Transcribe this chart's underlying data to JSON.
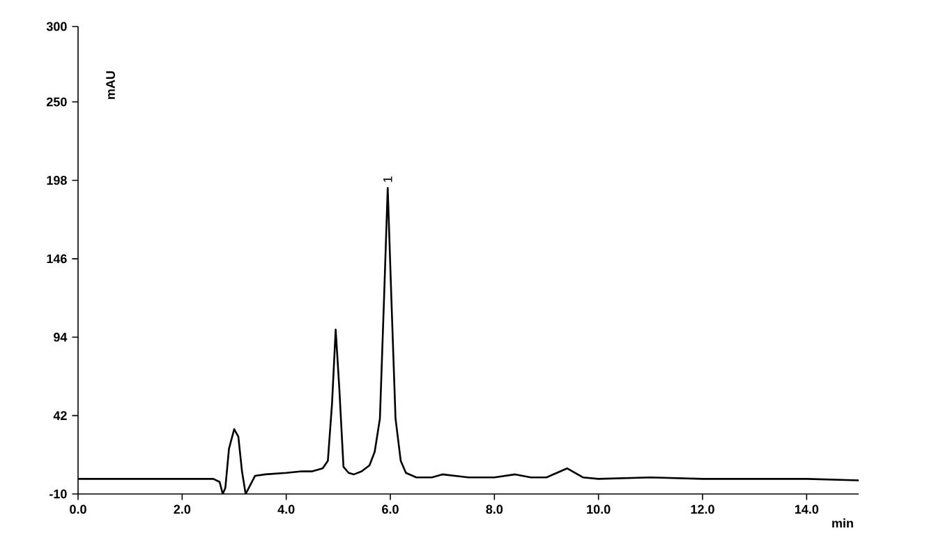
{
  "chart_data": {
    "type": "line",
    "xlabel": "min",
    "ylabel": "mAU",
    "xlim": [
      0,
      15
    ],
    "ylim": [
      -10,
      300
    ],
    "xticks": [
      {
        "value": 0,
        "label": "0.0"
      },
      {
        "value": 2,
        "label": "2.0"
      },
      {
        "value": 4,
        "label": "4.0"
      },
      {
        "value": 6,
        "label": "6.0"
      },
      {
        "value": 8,
        "label": "8.0"
      },
      {
        "value": 10,
        "label": "10.0"
      },
      {
        "value": 12,
        "label": "12.0"
      },
      {
        "value": 14,
        "label": "14.0"
      }
    ],
    "yticks": [
      -10,
      42,
      94,
      146,
      198,
      250,
      300
    ],
    "grid": false,
    "marker": "none",
    "line_style": "solid",
    "series": [
      {
        "color": "#000000",
        "x": [
          0,
          1,
          2,
          2.6,
          2.72,
          2.78,
          2.83,
          2.9,
          3.0,
          3.08,
          3.15,
          3.22,
          3.28,
          3.4,
          3.6,
          4.0,
          4.3,
          4.5,
          4.7,
          4.8,
          4.88,
          4.95,
          5.02,
          5.1,
          5.2,
          5.3,
          5.45,
          5.6,
          5.7,
          5.8,
          5.88,
          5.95,
          6.02,
          6.1,
          6.2,
          6.3,
          6.5,
          6.8,
          7.0,
          7.5,
          8.0,
          8.4,
          8.7,
          9.0,
          9.4,
          9.7,
          10,
          11,
          12,
          13,
          14,
          15
        ],
        "values": [
          0,
          0,
          0,
          0,
          -2,
          -10,
          -6,
          20,
          33,
          28,
          5,
          -10,
          -6,
          2,
          3,
          4,
          5,
          5,
          7,
          12,
          50,
          99,
          60,
          8,
          4,
          3,
          5,
          9,
          18,
          40,
          120,
          193,
          120,
          40,
          12,
          4,
          1,
          1,
          3,
          1,
          1,
          3,
          1,
          1,
          7,
          1,
          0,
          1,
          0,
          0,
          0,
          -1
        ]
      }
    ],
    "annotations": [
      {
        "text": "1",
        "x": 5.95,
        "y": 193
      }
    ]
  }
}
